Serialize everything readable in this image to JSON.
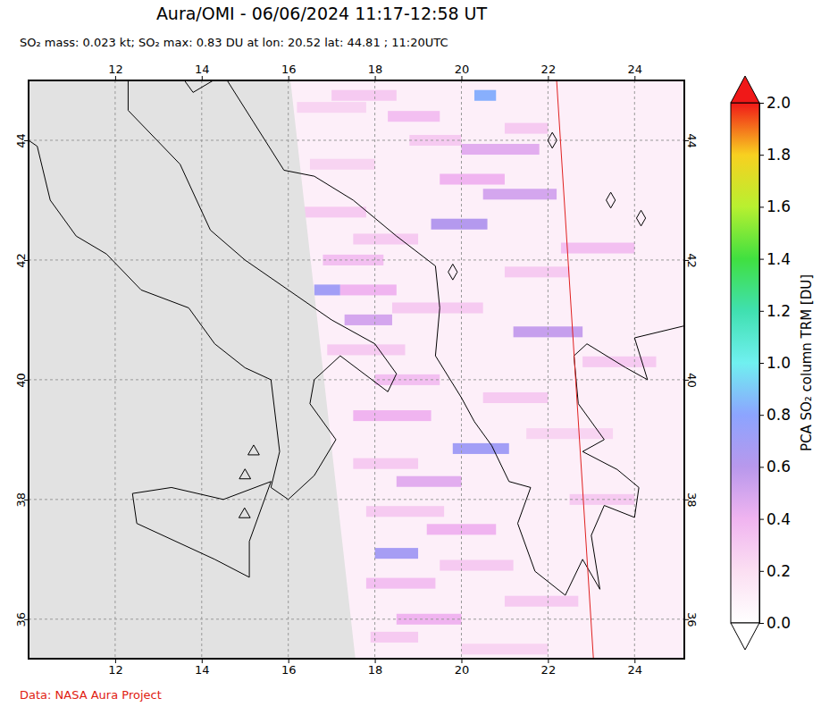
{
  "chart_data": {
    "type": "map",
    "title": "Aura/OMI - 06/06/2024 11:17-12:58 UT",
    "subtitle": "SO₂ mass: 0.023 kt; SO₂ max: 0.83 DU at lon: 20.52 lat: 44.81 ; 11:20UTC",
    "credit": "Data: NASA Aura Project",
    "xlim": [
      10.0,
      25.15
    ],
    "ylim": [
      35.34,
      45.0
    ],
    "xticks": [
      12,
      14,
      16,
      18,
      20,
      22,
      24
    ],
    "yticks": [
      36,
      38,
      40,
      42,
      44
    ],
    "grid": true,
    "background_value": 0.1,
    "colorbar": {
      "label": "PCA SO₂ column TRM [DU]",
      "lim": [
        0.0,
        2.0
      ],
      "ticks": [
        {
          "value": 0.0,
          "label": "0.0"
        },
        {
          "value": 0.2,
          "label": "0.2"
        },
        {
          "value": 0.4,
          "label": "0.4"
        },
        {
          "value": 0.6,
          "label": "0.6"
        },
        {
          "value": 0.8,
          "label": "0.8"
        },
        {
          "value": 1.0,
          "label": "1.0"
        },
        {
          "value": 1.2,
          "label": "1.2"
        },
        {
          "value": 1.4,
          "label": "1.4"
        },
        {
          "value": 1.6,
          "label": "1.6"
        },
        {
          "value": 1.8,
          "label": "1.8"
        },
        {
          "value": 2.0,
          "label": "2.0"
        }
      ],
      "stops": [
        {
          "value": 0.0,
          "color": "#ffffff"
        },
        {
          "value": 0.2,
          "color": "#fbdff2"
        },
        {
          "value": 0.4,
          "color": "#f0b4f0"
        },
        {
          "value": 0.6,
          "color": "#b898ec"
        },
        {
          "value": 0.8,
          "color": "#8ca4ff"
        },
        {
          "value": 1.0,
          "color": "#70f0f0"
        },
        {
          "value": 1.2,
          "color": "#40e0b0"
        },
        {
          "value": 1.4,
          "color": "#40e040"
        },
        {
          "value": 1.6,
          "color": "#b8f030"
        },
        {
          "value": 1.8,
          "color": "#f8d020"
        },
        {
          "value": 2.0,
          "color": "#f01818"
        }
      ]
    },
    "no_data": [
      [
        10.0,
        45.0
      ],
      [
        16.05,
        45.0
      ],
      [
        17.55,
        35.34
      ],
      [
        10.0,
        35.34
      ]
    ],
    "orbit_edge": [
      [
        22.2,
        45.0
      ],
      [
        23.05,
        35.34
      ]
    ],
    "swaths": [
      {
        "lat": 44.75,
        "lon0": 17.0,
        "lon1": 18.5,
        "value": 0.3
      },
      {
        "lat": 44.75,
        "lon0": 20.3,
        "lon1": 20.8,
        "value": 0.83
      },
      {
        "lat": 44.55,
        "lon0": 16.2,
        "lon1": 17.8,
        "value": 0.25
      },
      {
        "lat": 44.4,
        "lon0": 18.3,
        "lon1": 19.5,
        "value": 0.35
      },
      {
        "lat": 44.2,
        "lon0": 21.0,
        "lon1": 22.0,
        "value": 0.3
      },
      {
        "lat": 44.0,
        "lon0": 18.8,
        "lon1": 20.0,
        "value": 0.3
      },
      {
        "lat": 43.85,
        "lon0": 20.0,
        "lon1": 21.8,
        "value": 0.45
      },
      {
        "lat": 43.6,
        "lon0": 16.5,
        "lon1": 18.0,
        "value": 0.25
      },
      {
        "lat": 43.35,
        "lon0": 19.5,
        "lon1": 21.0,
        "value": 0.4
      },
      {
        "lat": 43.1,
        "lon0": 20.5,
        "lon1": 22.2,
        "value": 0.5
      },
      {
        "lat": 42.8,
        "lon0": 16.3,
        "lon1": 17.8,
        "value": 0.3
      },
      {
        "lat": 42.6,
        "lon0": 19.3,
        "lon1": 20.6,
        "value": 0.62
      },
      {
        "lat": 42.35,
        "lon0": 17.5,
        "lon1": 19.0,
        "value": 0.3
      },
      {
        "lat": 42.2,
        "lon0": 22.3,
        "lon1": 24.0,
        "value": 0.35
      },
      {
        "lat": 42.0,
        "lon0": 16.8,
        "lon1": 18.2,
        "value": 0.35
      },
      {
        "lat": 41.8,
        "lon0": 21.0,
        "lon1": 22.5,
        "value": 0.3
      },
      {
        "lat": 41.5,
        "lon0": 16.6,
        "lon1": 17.2,
        "value": 0.7
      },
      {
        "lat": 41.5,
        "lon0": 17.2,
        "lon1": 18.5,
        "value": 0.4
      },
      {
        "lat": 41.2,
        "lon0": 18.4,
        "lon1": 20.5,
        "value": 0.3
      },
      {
        "lat": 41.0,
        "lon0": 17.3,
        "lon1": 18.4,
        "value": 0.5
      },
      {
        "lat": 40.8,
        "lon0": 21.2,
        "lon1": 22.8,
        "value": 0.55
      },
      {
        "lat": 40.5,
        "lon0": 16.9,
        "lon1": 18.7,
        "value": 0.3
      },
      {
        "lat": 40.3,
        "lon0": 22.8,
        "lon1": 24.5,
        "value": 0.3
      },
      {
        "lat": 40.0,
        "lon0": 18.0,
        "lon1": 19.5,
        "value": 0.35
      },
      {
        "lat": 39.7,
        "lon0": 20.5,
        "lon1": 22.0,
        "value": 0.3
      },
      {
        "lat": 39.4,
        "lon0": 17.5,
        "lon1": 19.3,
        "value": 0.4
      },
      {
        "lat": 39.1,
        "lon0": 21.5,
        "lon1": 23.5,
        "value": 0.25
      },
      {
        "lat": 38.85,
        "lon0": 19.8,
        "lon1": 21.1,
        "value": 0.7
      },
      {
        "lat": 38.6,
        "lon0": 17.5,
        "lon1": 19.0,
        "value": 0.3
      },
      {
        "lat": 38.3,
        "lon0": 18.5,
        "lon1": 20.0,
        "value": 0.45
      },
      {
        "lat": 38.0,
        "lon0": 22.5,
        "lon1": 24.0,
        "value": 0.3
      },
      {
        "lat": 37.8,
        "lon0": 17.8,
        "lon1": 19.6,
        "value": 0.3
      },
      {
        "lat": 37.5,
        "lon0": 19.2,
        "lon1": 20.8,
        "value": 0.4
      },
      {
        "lat": 37.1,
        "lon0": 18.0,
        "lon1": 19.0,
        "value": 0.68
      },
      {
        "lat": 36.9,
        "lon0": 19.5,
        "lon1": 21.2,
        "value": 0.3
      },
      {
        "lat": 36.6,
        "lon0": 17.8,
        "lon1": 19.4,
        "value": 0.35
      },
      {
        "lat": 36.3,
        "lon0": 21.0,
        "lon1": 22.7,
        "value": 0.3
      },
      {
        "lat": 36.0,
        "lon0": 18.5,
        "lon1": 20.0,
        "value": 0.4
      },
      {
        "lat": 35.7,
        "lon0": 17.9,
        "lon1": 19.0,
        "value": 0.3
      },
      {
        "lat": 35.5,
        "lon0": 20.0,
        "lon1": 22.0,
        "value": 0.25
      }
    ],
    "volcanoes": [
      [
        15.2,
        38.8
      ],
      [
        15.0,
        38.4
      ],
      [
        14.99,
        37.75
      ]
    ],
    "diamonds": [
      [
        22.1,
        44.0
      ],
      [
        23.45,
        43.0
      ],
      [
        24.15,
        42.7
      ],
      [
        19.8,
        41.8
      ]
    ],
    "coastlines": [
      [
        [
          12.3,
          45.0
        ],
        [
          12.3,
          44.5
        ],
        [
          13.5,
          43.6
        ],
        [
          14.2,
          42.5
        ],
        [
          15.0,
          42.0
        ],
        [
          16.0,
          41.5
        ],
        [
          17.0,
          41.0
        ],
        [
          18.0,
          40.6
        ],
        [
          18.5,
          40.1
        ],
        [
          18.3,
          39.8
        ],
        [
          17.2,
          40.4
        ],
        [
          16.6,
          40.0
        ],
        [
          16.5,
          39.6
        ],
        [
          17.1,
          39.0
        ],
        [
          16.6,
          38.4
        ],
        [
          16.0,
          38.0
        ],
        [
          15.6,
          38.2
        ],
        [
          15.8,
          38.8
        ],
        [
          15.6,
          40.0
        ],
        [
          15.0,
          40.2
        ],
        [
          14.3,
          40.6
        ],
        [
          13.7,
          41.2
        ],
        [
          12.6,
          41.5
        ],
        [
          11.8,
          42.1
        ],
        [
          11.1,
          42.4
        ],
        [
          10.5,
          43.0
        ],
        [
          10.2,
          43.9
        ],
        [
          10.0,
          44.0
        ]
      ],
      [
        [
          15.6,
          38.3
        ],
        [
          15.1,
          37.3
        ],
        [
          15.1,
          36.7
        ],
        [
          14.3,
          37.0
        ],
        [
          12.5,
          37.6
        ],
        [
          12.4,
          38.1
        ],
        [
          13.3,
          38.2
        ],
        [
          14.5,
          38.0
        ],
        [
          15.6,
          38.3
        ]
      ],
      [
        [
          13.6,
          45.0
        ],
        [
          13.8,
          44.8
        ],
        [
          14.5,
          45.1
        ],
        [
          15.2,
          44.3
        ],
        [
          15.9,
          43.5
        ],
        [
          16.6,
          43.4
        ],
        [
          17.5,
          43.0
        ],
        [
          18.5,
          42.4
        ],
        [
          19.4,
          41.9
        ],
        [
          19.5,
          41.2
        ],
        [
          19.4,
          40.4
        ],
        [
          20.0,
          39.7
        ],
        [
          20.3,
          39.3
        ],
        [
          20.7,
          38.9
        ],
        [
          21.1,
          38.3
        ],
        [
          21.6,
          38.2
        ],
        [
          21.3,
          37.6
        ],
        [
          21.7,
          36.8
        ],
        [
          22.4,
          36.4
        ],
        [
          22.8,
          37.0
        ],
        [
          23.2,
          36.5
        ],
        [
          23.0,
          37.4
        ],
        [
          23.3,
          37.9
        ],
        [
          24.0,
          37.7
        ],
        [
          24.1,
          38.2
        ],
        [
          23.6,
          38.5
        ],
        [
          22.8,
          38.8
        ],
        [
          23.3,
          39.0
        ],
        [
          22.7,
          39.6
        ],
        [
          22.6,
          40.4
        ],
        [
          22.9,
          40.6
        ],
        [
          23.8,
          40.2
        ],
        [
          24.3,
          40.0
        ],
        [
          24.0,
          40.7
        ],
        [
          25.15,
          40.9
        ]
      ]
    ]
  }
}
